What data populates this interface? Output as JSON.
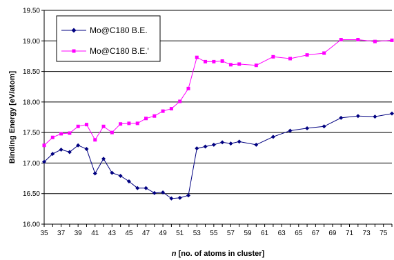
{
  "chart_data": {
    "type": "line",
    "xlabel_italic": "n",
    "xlabel_rest": " [no. of atoms in cluster]",
    "ylabel": "Binding Energy [eV/atom]",
    "xlim": [
      35,
      76
    ],
    "ylim": [
      16.0,
      19.5
    ],
    "ytick_step": 0.5,
    "yticks": [
      "16.00",
      "16.50",
      "17.00",
      "17.50",
      "18.00",
      "18.50",
      "19.00",
      "19.50"
    ],
    "xticks": [
      "35",
      "37",
      "39",
      "41",
      "43",
      "45",
      "47",
      "49",
      "51",
      "53",
      "55",
      "57",
      "59",
      "61",
      "63",
      "65",
      "67",
      "69",
      "71",
      "73",
      "75"
    ],
    "grid": "horizontal",
    "legend_position": "top-left",
    "series": [
      {
        "name": "Mo@C180 B.E.",
        "color": "#000080",
        "marker": "diamond",
        "x": [
          35,
          36,
          37,
          38,
          39,
          40,
          41,
          42,
          43,
          44,
          45,
          46,
          47,
          48,
          49,
          50,
          51,
          52,
          53,
          54,
          55,
          56,
          57,
          58,
          60,
          62,
          64,
          66,
          68,
          70,
          72,
          74,
          76
        ],
        "y": [
          17.02,
          17.15,
          17.22,
          17.18,
          17.29,
          17.23,
          16.83,
          17.07,
          16.84,
          16.79,
          16.7,
          16.59,
          16.59,
          16.51,
          16.52,
          16.42,
          16.43,
          16.47,
          17.24,
          17.27,
          17.3,
          17.34,
          17.32,
          17.35,
          17.3,
          17.43,
          17.53,
          17.57,
          17.6,
          17.74,
          17.77,
          17.76,
          17.81
        ]
      },
      {
        "name": "Mo@C180 B.E.'",
        "color": "#FF00FF",
        "marker": "square",
        "x": [
          35,
          36,
          37,
          38,
          39,
          40,
          41,
          42,
          43,
          44,
          45,
          46,
          47,
          48,
          49,
          50,
          51,
          52,
          53,
          54,
          55,
          56,
          57,
          58,
          60,
          62,
          64,
          66,
          68,
          70,
          72,
          74,
          76
        ],
        "y": [
          17.29,
          17.42,
          17.48,
          17.49,
          17.6,
          17.63,
          17.38,
          17.6,
          17.5,
          17.64,
          17.65,
          17.65,
          17.73,
          17.77,
          17.85,
          17.89,
          18.01,
          18.22,
          18.73,
          18.66,
          18.66,
          18.67,
          18.61,
          18.62,
          18.6,
          18.74,
          18.71,
          18.77,
          18.8,
          19.02,
          19.02,
          18.99,
          19.01
        ]
      }
    ]
  }
}
